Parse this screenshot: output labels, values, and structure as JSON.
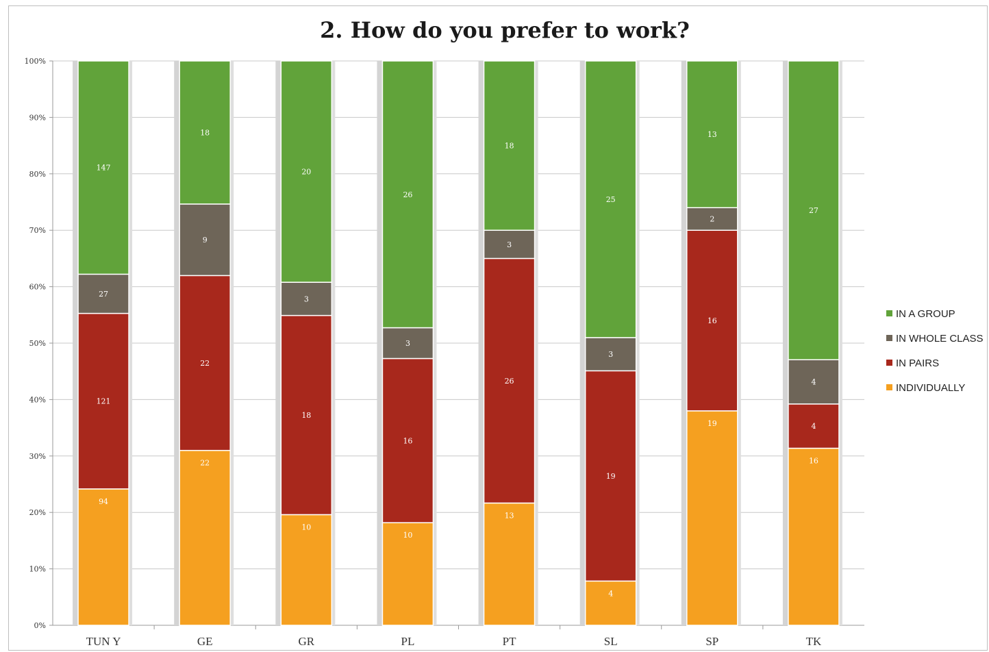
{
  "chart_data": {
    "type": "bar",
    "stacked": "percent",
    "title": "2. How do you prefer to work?",
    "xlabel": "",
    "ylabel": "",
    "categories": [
      "TUN Y",
      "GE",
      "GR",
      "PL",
      "PT",
      "SL",
      "SP",
      "TK"
    ],
    "ylim": [
      0,
      100
    ],
    "yticks": [
      "0%",
      "10%",
      "20%",
      "30%",
      "40%",
      "50%",
      "60%",
      "70%",
      "80%",
      "90%",
      "100%"
    ],
    "grid": true,
    "legend_position": "right",
    "series": [
      {
        "name": "INDIVIDUALLY",
        "color": "#f5a020",
        "values": [
          94,
          22,
          10,
          10,
          13,
          4,
          19,
          16
        ]
      },
      {
        "name": "IN PAIRS",
        "color": "#a8281c",
        "values": [
          121,
          22,
          18,
          16,
          26,
          19,
          16,
          4
        ]
      },
      {
        "name": "IN WHOLE CLASS",
        "color": "#6e6558",
        "values": [
          27,
          9,
          3,
          3,
          3,
          3,
          2,
          4
        ]
      },
      {
        "name": "IN A GROUP",
        "color": "#61a33a",
        "values": [
          147,
          18,
          20,
          26,
          18,
          25,
          13,
          27
        ]
      }
    ],
    "legend_order": [
      "IN A GROUP",
      "IN WHOLE CLASS",
      "IN PAIRS",
      "INDIVIDUALLY"
    ]
  }
}
